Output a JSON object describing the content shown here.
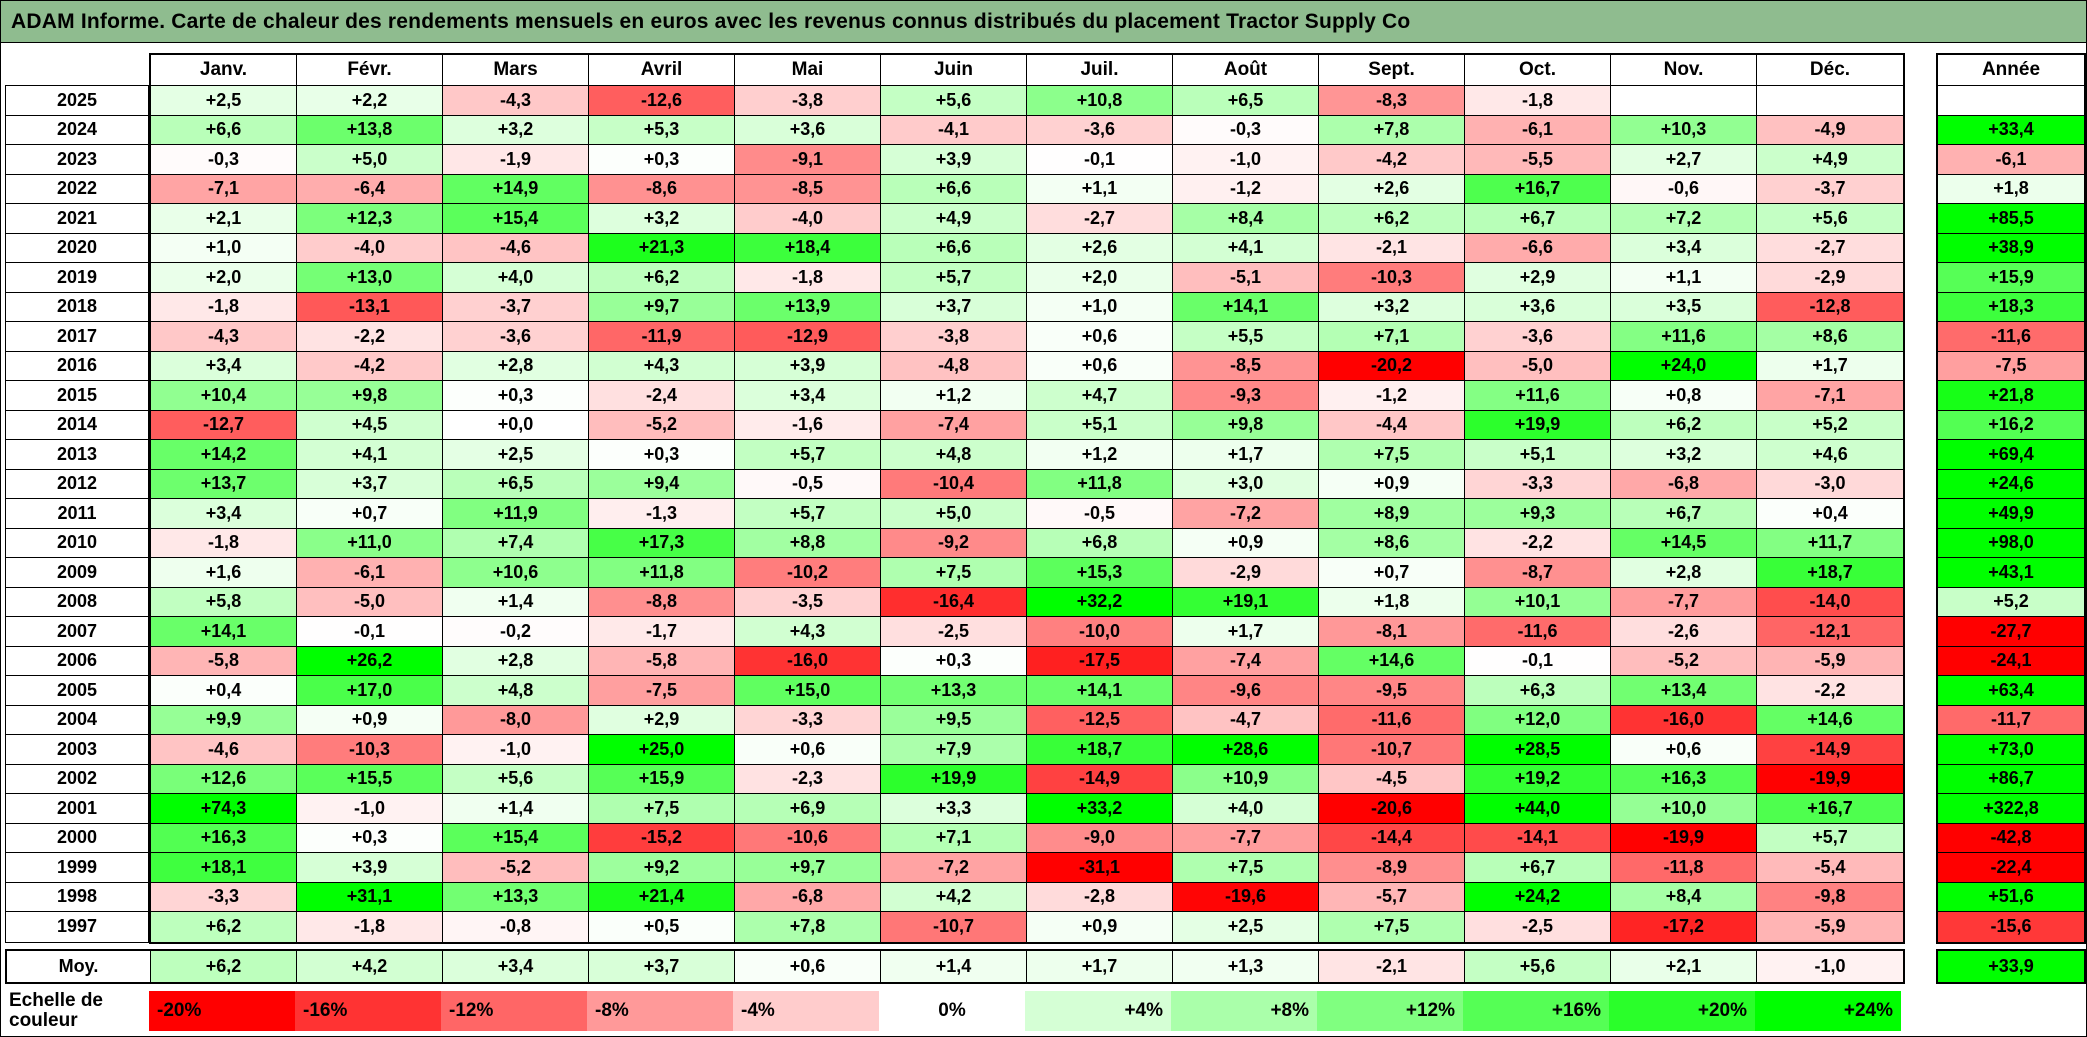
{
  "title": "ADAM Informe. Carte de chaleur des rendements mensuels en euros avec les revenus connus distribués du placement Tractor Supply Co",
  "scale": {
    "label": "Echelle de couleur",
    "ticks": [
      {
        "label": "-20%",
        "value": -20
      },
      {
        "label": "-16%",
        "value": -16
      },
      {
        "label": "-12%",
        "value": -12
      },
      {
        "label": "-8%",
        "value": -8
      },
      {
        "label": "-4%",
        "value": -4
      },
      {
        "label": "0%",
        "value": 0
      },
      {
        "label": "+4%",
        "value": 4
      },
      {
        "label": "+8%",
        "value": 8
      },
      {
        "label": "+12%",
        "value": 12
      },
      {
        "label": "+16%",
        "value": 16
      },
      {
        "label": "+20%",
        "value": 20
      },
      {
        "label": "+24%",
        "value": 24
      }
    ]
  },
  "colors": {
    "negative": "#FF0000",
    "zero": "#FFFFFF",
    "positive": "#00FF00",
    "title_bg": "#8FBC8F",
    "domain": [
      -20,
      24
    ]
  },
  "chart_data": {
    "type": "heatmap",
    "title": "Carte de chaleur des rendements mensuels en euros - Tractor Supply Co",
    "unit": "%",
    "value_format": "signed, one decimal, comma separator",
    "color_scale": {
      "min": -20,
      "mid": 0,
      "max": 24,
      "min_color": "#FF0000",
      "mid_color": "#FFFFFF",
      "max_color": "#00FF00"
    },
    "columns": [
      "Janv.",
      "Févr.",
      "Mars",
      "Avril",
      "Mai",
      "Juin",
      "Juil.",
      "Août",
      "Sept.",
      "Oct.",
      "Nov.",
      "Déc."
    ],
    "annual_header": "Année",
    "rows": [
      {
        "year": "2025",
        "months": [
          2.5,
          2.2,
          -4.3,
          -12.6,
          -3.8,
          5.6,
          10.8,
          6.5,
          -8.3,
          -1.8,
          null,
          null
        ],
        "annual": null
      },
      {
        "year": "2024",
        "months": [
          6.6,
          13.8,
          3.2,
          5.3,
          3.6,
          -4.1,
          -3.6,
          -0.3,
          7.8,
          -6.1,
          10.3,
          -4.9
        ],
        "annual": 33.4
      },
      {
        "year": "2023",
        "months": [
          -0.3,
          5.0,
          -1.9,
          0.3,
          -9.1,
          3.9,
          -0.1,
          -1.0,
          -4.2,
          -5.5,
          2.7,
          4.9
        ],
        "annual": -6.1
      },
      {
        "year": "2022",
        "months": [
          -7.1,
          -6.4,
          14.9,
          -8.6,
          -8.5,
          6.6,
          1.1,
          -1.2,
          2.6,
          16.7,
          -0.6,
          -3.7
        ],
        "annual": 1.8
      },
      {
        "year": "2021",
        "months": [
          2.1,
          12.3,
          15.4,
          3.2,
          -4.0,
          4.9,
          -2.7,
          8.4,
          6.2,
          6.7,
          7.2,
          5.6
        ],
        "annual": 85.5
      },
      {
        "year": "2020",
        "months": [
          1.0,
          -4.0,
          -4.6,
          21.3,
          18.4,
          6.6,
          2.6,
          4.1,
          -2.1,
          -6.6,
          3.4,
          -2.7
        ],
        "annual": 38.9
      },
      {
        "year": "2019",
        "months": [
          2.0,
          13.0,
          4.0,
          6.2,
          -1.8,
          5.7,
          2.0,
          -5.1,
          -10.3,
          2.9,
          1.1,
          -2.9
        ],
        "annual": 15.9
      },
      {
        "year": "2018",
        "months": [
          -1.8,
          -13.1,
          -3.7,
          9.7,
          13.9,
          3.7,
          1.0,
          14.1,
          3.2,
          3.6,
          3.5,
          -12.8
        ],
        "annual": 18.3
      },
      {
        "year": "2017",
        "months": [
          -4.3,
          -2.2,
          -3.6,
          -11.9,
          -12.9,
          -3.8,
          0.6,
          5.5,
          7.1,
          -3.6,
          11.6,
          8.6
        ],
        "annual": -11.6
      },
      {
        "year": "2016",
        "months": [
          3.4,
          -4.2,
          2.8,
          4.3,
          3.9,
          -4.8,
          0.6,
          -8.5,
          -20.2,
          -5.0,
          24.0,
          1.7
        ],
        "annual": -7.5
      },
      {
        "year": "2015",
        "months": [
          10.4,
          9.8,
          0.3,
          -2.4,
          3.4,
          1.2,
          4.7,
          -9.3,
          -1.2,
          11.6,
          0.8,
          -7.1
        ],
        "annual": 21.8
      },
      {
        "year": "2014",
        "months": [
          -12.7,
          4.5,
          0.0,
          -5.2,
          -1.6,
          -7.4,
          5.1,
          9.8,
          -4.4,
          19.9,
          6.2,
          5.2
        ],
        "annual": 16.2
      },
      {
        "year": "2013",
        "months": [
          14.2,
          4.1,
          2.5,
          0.3,
          5.7,
          4.8,
          1.2,
          1.7,
          7.5,
          5.1,
          3.2,
          4.6
        ],
        "annual": 69.4
      },
      {
        "year": "2012",
        "months": [
          13.7,
          3.7,
          6.5,
          9.4,
          -0.5,
          -10.4,
          11.8,
          3.0,
          0.9,
          -3.3,
          -6.8,
          -3.0
        ],
        "annual": 24.6
      },
      {
        "year": "2011",
        "months": [
          3.4,
          0.7,
          11.9,
          -1.3,
          5.7,
          5.0,
          -0.5,
          -7.2,
          8.9,
          9.3,
          6.7,
          0.4
        ],
        "annual": 49.9
      },
      {
        "year": "2010",
        "months": [
          -1.8,
          11.0,
          7.4,
          17.3,
          8.8,
          -9.2,
          6.8,
          0.9,
          8.6,
          -2.2,
          14.5,
          11.7
        ],
        "annual": 98.0
      },
      {
        "year": "2009",
        "months": [
          1.6,
          -6.1,
          10.6,
          11.8,
          -10.2,
          7.5,
          15.3,
          -2.9,
          0.7,
          -8.7,
          2.8,
          18.7
        ],
        "annual": 43.1
      },
      {
        "year": "2008",
        "months": [
          5.8,
          -5.0,
          1.4,
          -8.8,
          -3.5,
          -16.4,
          32.2,
          19.1,
          1.8,
          10.1,
          -7.7,
          -14.0
        ],
        "annual": 5.2
      },
      {
        "year": "2007",
        "months": [
          14.1,
          -0.1,
          -0.2,
          -1.7,
          4.3,
          -2.5,
          -10.0,
          1.7,
          -8.1,
          -11.6,
          -2.6,
          -12.1
        ],
        "annual": -27.7
      },
      {
        "year": "2006",
        "months": [
          -5.8,
          26.2,
          2.8,
          -5.8,
          -16.0,
          0.3,
          -17.5,
          -7.4,
          14.6,
          -0.1,
          -5.2,
          -5.9
        ],
        "annual": -24.1
      },
      {
        "year": "2005",
        "months": [
          0.4,
          17.0,
          4.8,
          -7.5,
          15.0,
          13.3,
          14.1,
          -9.6,
          -9.5,
          6.3,
          13.4,
          -2.2
        ],
        "annual": 63.4
      },
      {
        "year": "2004",
        "months": [
          9.9,
          0.9,
          -8.0,
          2.9,
          -3.3,
          9.5,
          -12.5,
          -4.7,
          -11.6,
          12.0,
          -16.0,
          14.6
        ],
        "annual": -11.7
      },
      {
        "year": "2003",
        "months": [
          -4.6,
          -10.3,
          -1.0,
          25.0,
          0.6,
          7.9,
          18.7,
          28.6,
          -10.7,
          28.5,
          0.6,
          -14.9
        ],
        "annual": 73.0
      },
      {
        "year": "2002",
        "months": [
          12.6,
          15.5,
          5.6,
          15.9,
          -2.3,
          19.9,
          -14.9,
          10.9,
          -4.5,
          19.2,
          16.3,
          -19.9
        ],
        "annual": 86.7
      },
      {
        "year": "2001",
        "months": [
          74.3,
          -1.0,
          1.4,
          7.5,
          6.9,
          3.3,
          33.2,
          4.0,
          -20.6,
          44.0,
          10.0,
          16.7
        ],
        "annual": 322.8
      },
      {
        "year": "2000",
        "months": [
          16.3,
          0.3,
          15.4,
          -15.2,
          -10.6,
          7.1,
          -9.0,
          -7.7,
          -14.4,
          -14.1,
          -19.9,
          5.7
        ],
        "annual": -42.8
      },
      {
        "year": "1999",
        "months": [
          18.1,
          3.9,
          -5.2,
          9.2,
          9.7,
          -7.2,
          -31.1,
          7.5,
          -8.9,
          6.7,
          -11.8,
          -5.4
        ],
        "annual": -22.4
      },
      {
        "year": "1998",
        "months": [
          -3.3,
          31.1,
          13.3,
          21.4,
          -6.8,
          4.2,
          -2.8,
          -19.6,
          -5.7,
          24.2,
          8.4,
          -9.8
        ],
        "annual": 51.6
      },
      {
        "year": "1997",
        "months": [
          6.2,
          -1.8,
          -0.8,
          0.5,
          7.8,
          -10.7,
          0.9,
          2.5,
          7.5,
          -2.5,
          -17.2,
          -5.9
        ],
        "annual": -15.6
      }
    ],
    "average": {
      "label": "Moy.",
      "months": [
        6.2,
        4.2,
        3.4,
        3.7,
        0.6,
        1.4,
        1.7,
        1.3,
        -2.1,
        5.6,
        2.1,
        -1.0
      ],
      "annual": 33.9
    }
  }
}
